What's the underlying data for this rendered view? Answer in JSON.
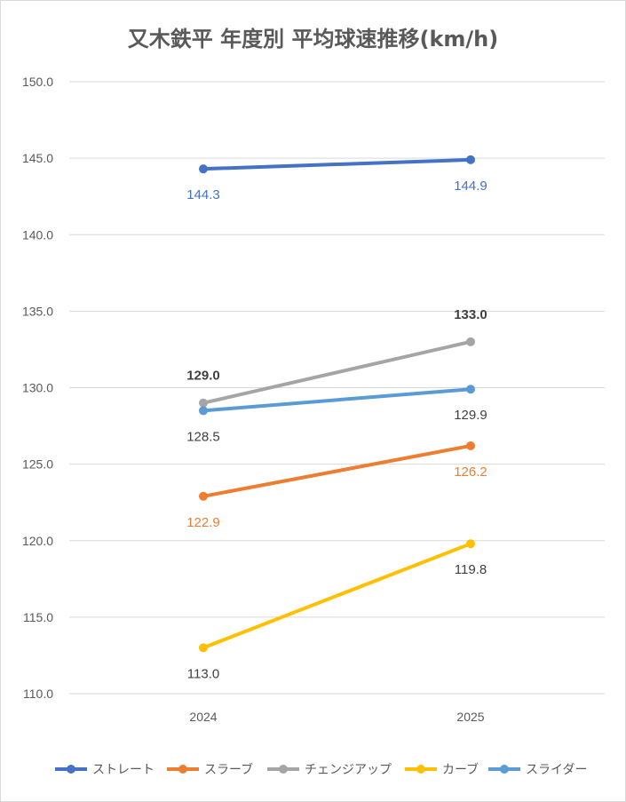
{
  "chart_data": {
    "type": "line",
    "title": "又木鉄平 年度別 平均球速推移(km/h)",
    "categories": [
      "2024",
      "2025"
    ],
    "ylim": [
      110,
      150
    ],
    "yticks": [
      "150.0",
      "145.0",
      "140.0",
      "135.0",
      "130.0",
      "125.0",
      "120.0",
      "115.0",
      "110.0"
    ],
    "grid": true,
    "legend_position": "bottom",
    "series": [
      {
        "name": "ストレート",
        "values": [
          144.3,
          144.9
        ],
        "labels": [
          "144.3",
          "144.9"
        ],
        "color": "#4472c4",
        "label_color": "#4472c4",
        "label_bold": false
      },
      {
        "name": "スラーブ",
        "values": [
          122.9,
          126.2
        ],
        "labels": [
          "122.9",
          "126.2"
        ],
        "color": "#ed7d31",
        "label_color": "#ed7d31",
        "label_bold": false
      },
      {
        "name": "チェンジアップ",
        "values": [
          129.0,
          133.0
        ],
        "labels": [
          "129.0",
          "133.0"
        ],
        "color": "#a5a5a5",
        "label_color": "#404040",
        "label_bold": true
      },
      {
        "name": "カーブ",
        "values": [
          113.0,
          119.8
        ],
        "labels": [
          "113.0",
          "119.8"
        ],
        "color": "#ffc000",
        "label_color": "#404040",
        "label_bold": false
      },
      {
        "name": "スライダー",
        "values": [
          128.5,
          129.9
        ],
        "labels": [
          "128.5",
          "129.9"
        ],
        "color": "#5b9bd5",
        "label_color": "#404040",
        "label_bold": false
      }
    ]
  }
}
